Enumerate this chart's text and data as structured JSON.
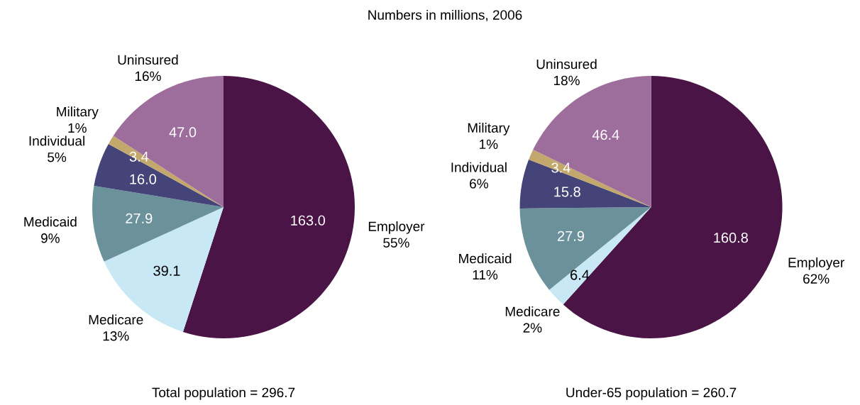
{
  "chart_data": [
    {
      "type": "pie",
      "title": "Numbers in millions, 2006",
      "categories": [
        "Employer 55%",
        "Medicare 13%",
        "Medicaid 9%",
        "Individual 5%",
        "Military 1%",
        "Uninsured 16%"
      ],
      "values": [
        163.0,
        39.1,
        27.9,
        16.0,
        3.4,
        47.0
      ],
      "colors": [
        "#4a1446",
        "#c9e8f5",
        "#6b929b",
        "#454478",
        "#c2a86c",
        "#9d6d9c"
      ],
      "value_labels": [
        "163.0",
        "39.1",
        "27.9",
        "16.0",
        "3.4",
        "47.0"
      ],
      "annotations": [
        "Total population = 296.7"
      ]
    },
    {
      "type": "pie",
      "categories": [
        "Employer 62%",
        "Medicare 2%",
        "Medicaid 11%",
        "Individual 6%",
        "Military 1%",
        "Uninsured 18%"
      ],
      "values": [
        160.8,
        6.4,
        27.9,
        15.8,
        3.4,
        46.4
      ],
      "colors": [
        "#4a1446",
        "#c9e8f5",
        "#6b929b",
        "#454478",
        "#c2a86c",
        "#9d6d9c"
      ],
      "value_labels": [
        "160.8",
        "6.4",
        "27.9",
        "15.8",
        "3.4",
        "46.4"
      ],
      "annotations": [
        "Under-65 population = 260.7"
      ]
    }
  ]
}
